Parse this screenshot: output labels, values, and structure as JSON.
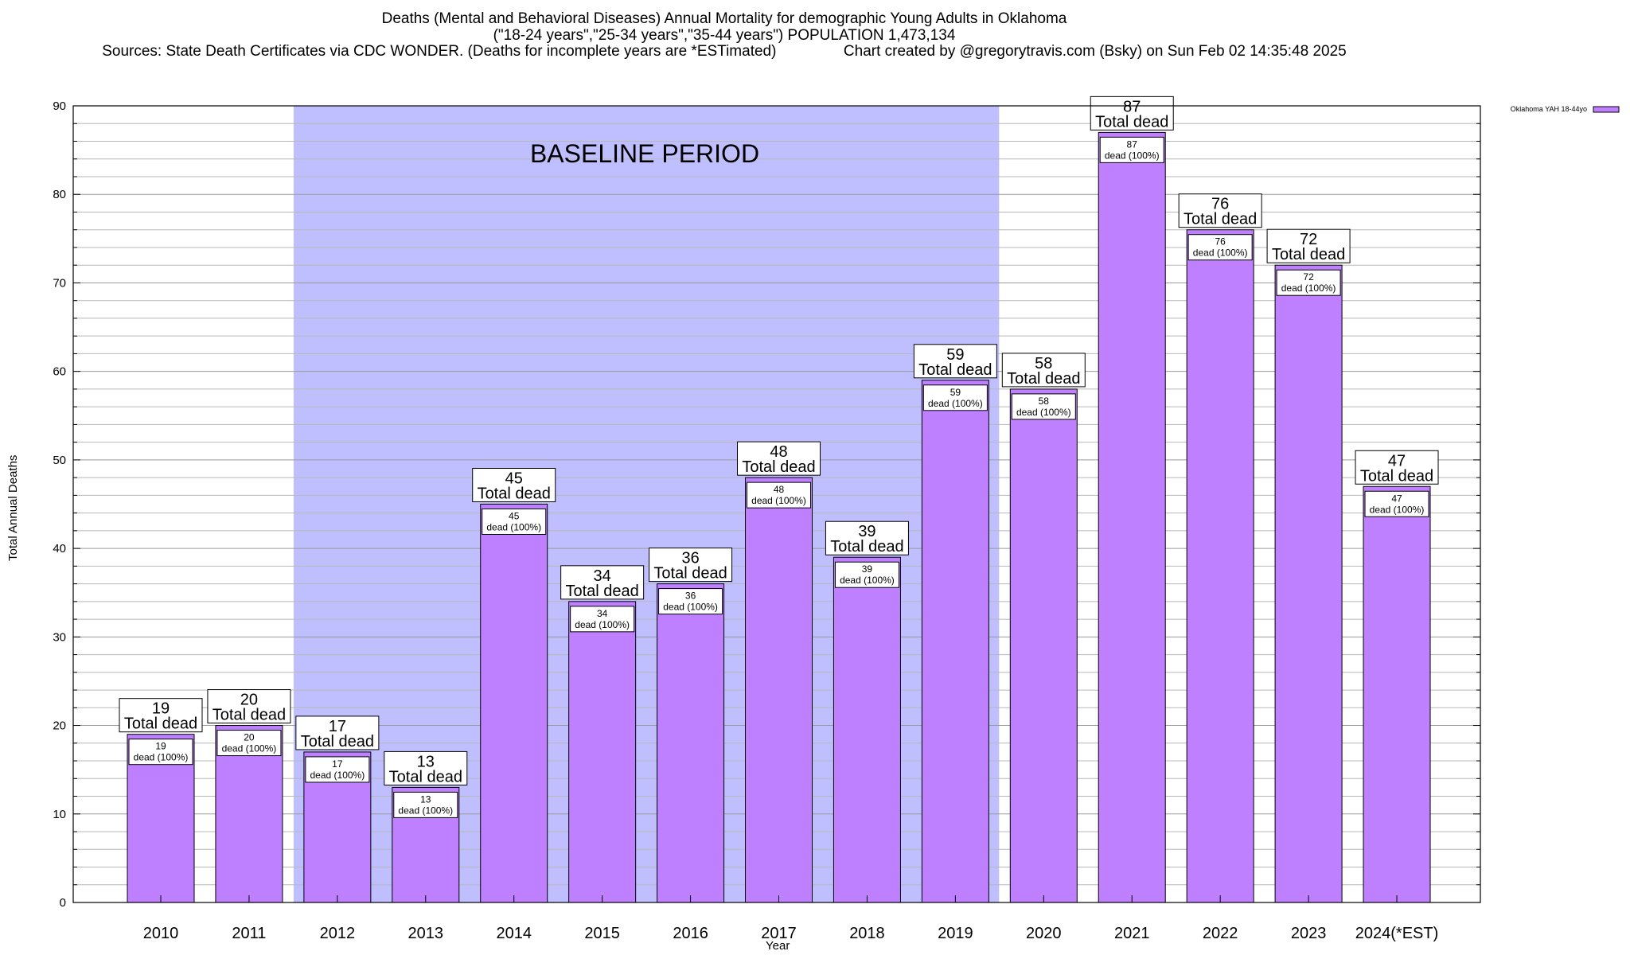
{
  "chart_data": {
    "type": "bar",
    "title": "Deaths (Mental and Behavioral Diseases) Annual Mortality for demographic Young Adults in Oklahoma",
    "subtitle": "(\"18-24 years\",\"25-34 years\",\"35-44 years\") POPULATION 1,473,134",
    "source_text": "Sources: State Death Certificates via CDC WONDER. (Deaths for incomplete years are *ESTimated)",
    "credit_text": "Chart created by @gregorytravis.com (Bsky) on Sun Feb 02 14:35:48 2025",
    "xlabel": "Year",
    "ylabel": "Total Annual Deaths",
    "ylim": [
      0,
      90
    ],
    "y_ticks": [
      0,
      10,
      20,
      30,
      40,
      50,
      60,
      70,
      80,
      90
    ],
    "grid": true,
    "categories": [
      "2010",
      "2011",
      "2012",
      "2013",
      "2014",
      "2015",
      "2016",
      "2017",
      "2018",
      "2019",
      "2020",
      "2021",
      "2022",
      "2023",
      "2024(*EST)"
    ],
    "series": [
      {
        "name": "Oklahoma YAH 18-44yo",
        "color": "#bf80ff",
        "values": [
          19,
          20,
          17,
          13,
          45,
          34,
          36,
          48,
          39,
          59,
          58,
          87,
          76,
          72,
          47
        ]
      }
    ],
    "bar_label_top": "Total dead",
    "bar_label_inner": "dead (100%)",
    "annotation": {
      "text": "BASELINE PERIOD",
      "start_category": "2012",
      "end_category": "2019",
      "color": "#bfbfff"
    },
    "legend_position": "top-right"
  }
}
